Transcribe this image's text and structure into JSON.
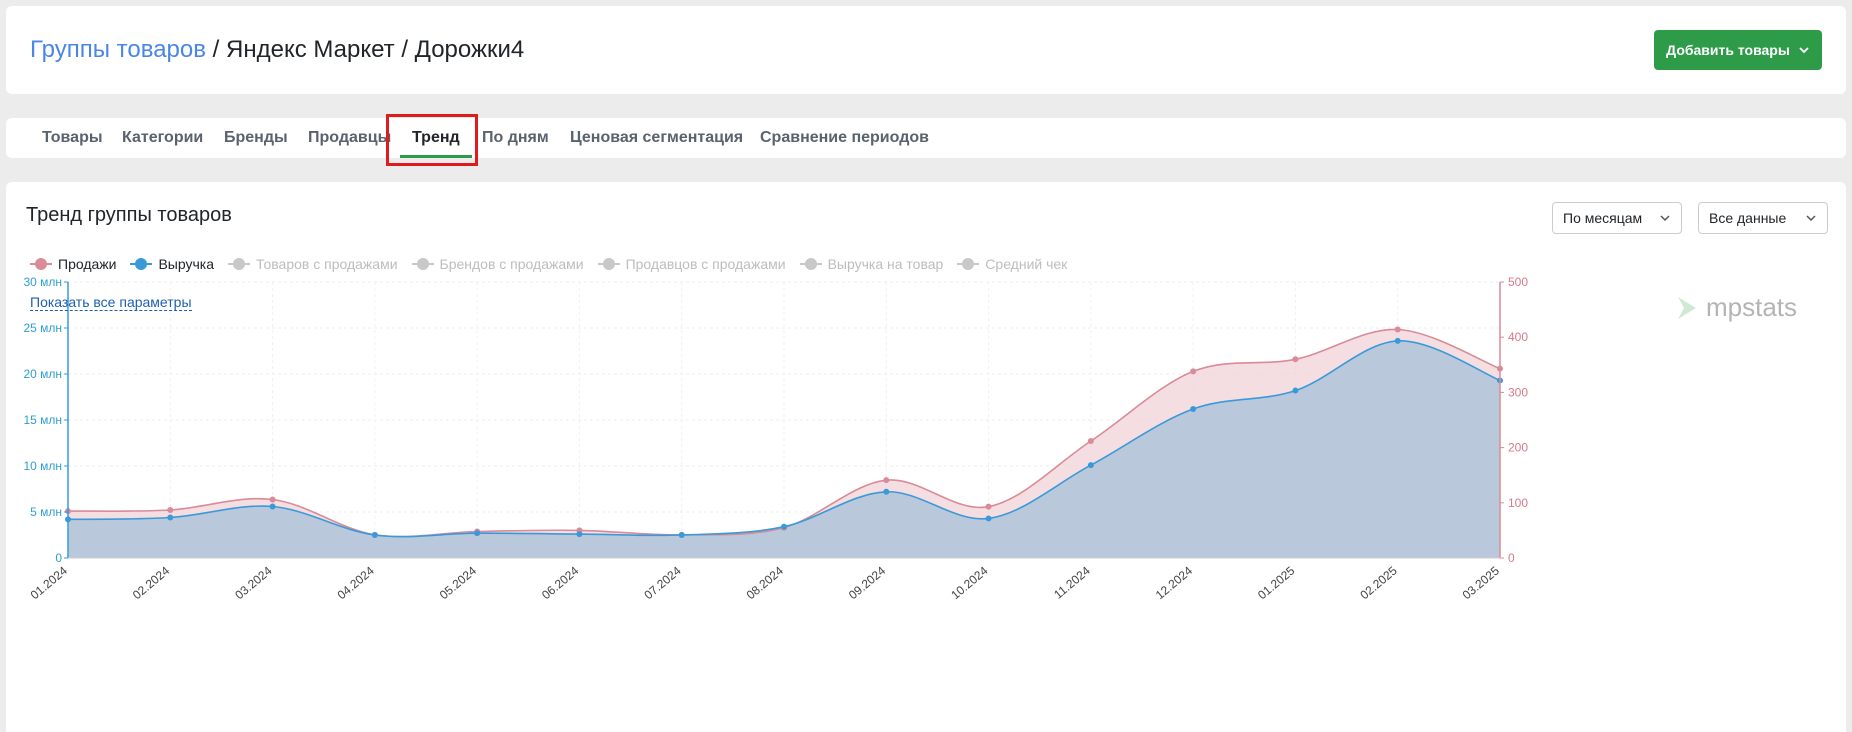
{
  "breadcrumb": {
    "root": "Группы товаров",
    "separator1": " / ",
    "marketplace": "Яндекс Маркет",
    "separator2": " / ",
    "group": "Дорожки4"
  },
  "header": {
    "add_button_label": "Добавить товары"
  },
  "tabs": [
    {
      "label": "Товары",
      "active": false
    },
    {
      "label": "Категории",
      "active": false
    },
    {
      "label": "Бренды",
      "active": false
    },
    {
      "label": "Продавцы",
      "active": false
    },
    {
      "label": "Тренд",
      "active": true
    },
    {
      "label": "По дням",
      "active": false
    },
    {
      "label": "Ценовая сегментация",
      "active": false
    },
    {
      "label": "Сравнение периодов",
      "active": false
    }
  ],
  "panel": {
    "title": "Тренд группы товаров",
    "period_select": "По месяцам",
    "data_select": "Все данные",
    "show_all_params": "Показать все параметры",
    "logo_text": "mpstats"
  },
  "legend": [
    {
      "label": "Продажи",
      "color": "#d98b97",
      "active": true
    },
    {
      "label": "Выручка",
      "color": "#3a9ad9",
      "active": true
    },
    {
      "label": "Товаров с продажами",
      "color": "#c8c8c8",
      "active": false
    },
    {
      "label": "Брендов с продажами",
      "color": "#c8c8c8",
      "active": false
    },
    {
      "label": "Продавцов с продажами",
      "color": "#c8c8c8",
      "active": false
    },
    {
      "label": "Выручка на товар",
      "color": "#c8c8c8",
      "active": false
    },
    {
      "label": "Средний чек",
      "color": "#c8c8c8",
      "active": false
    }
  ],
  "colors": {
    "accent": "#2e9b49",
    "link": "#4a86e8",
    "revenue": "#3a9ad9",
    "sales": "#d98b97"
  },
  "chart_data": {
    "type": "area",
    "categories": [
      "01.2024",
      "02.2024",
      "03.2024",
      "04.2024",
      "05.2024",
      "06.2024",
      "07.2024",
      "08.2024",
      "09.2024",
      "10.2024",
      "11.2024",
      "12.2024",
      "01.2025",
      "02.2025",
      "03.2025"
    ],
    "series": [
      {
        "name": "Выручка",
        "axis": "left",
        "values": [
          4.2,
          4.4,
          5.6,
          2.5,
          2.7,
          2.6,
          2.5,
          3.4,
          7.2,
          4.3,
          10.1,
          16.2,
          18.2,
          23.6,
          19.3
        ]
      },
      {
        "name": "Продажи",
        "axis": "right",
        "values": [
          85,
          87,
          106,
          42,
          48,
          50,
          42,
          55,
          141,
          93,
          212,
          338,
          360,
          414,
          343
        ]
      }
    ],
    "left_axis": {
      "ticks": [
        "0",
        "5 млн",
        "10 млн",
        "15 млн",
        "20 млн",
        "25 млн",
        "30 млн"
      ],
      "ylim": [
        0,
        30
      ],
      "unit": "млн"
    },
    "right_axis": {
      "ticks": [
        "0",
        "100",
        "200",
        "300",
        "400",
        "500"
      ],
      "ylim": [
        0,
        500
      ]
    },
    "grid": true
  }
}
